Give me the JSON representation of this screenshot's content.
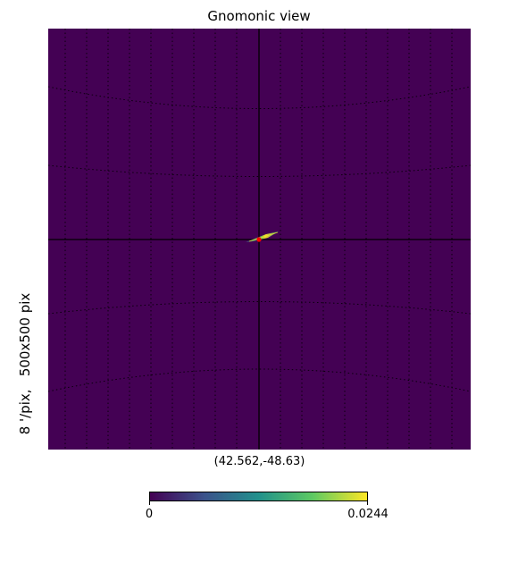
{
  "chart_data": {
    "type": "heatmap",
    "projection": "gnomonic",
    "title": "Gnomonic view",
    "center_label": "(42.562,-48.63)",
    "side_label": "8 '/pix,   500x500 pix",
    "map_background_value": 0,
    "hotspot_peak_value": 0.0244,
    "colorbar": {
      "colormap": "viridis",
      "min": 0,
      "max": 0.0244,
      "min_label": "0",
      "max_label": "0.0244",
      "colors": [
        "#440154",
        "#3b528b",
        "#21918c",
        "#5ec962",
        "#fde725"
      ]
    },
    "colors": {
      "background": "#440154",
      "marker": "#ff0000",
      "graticule": "#000000"
    }
  }
}
